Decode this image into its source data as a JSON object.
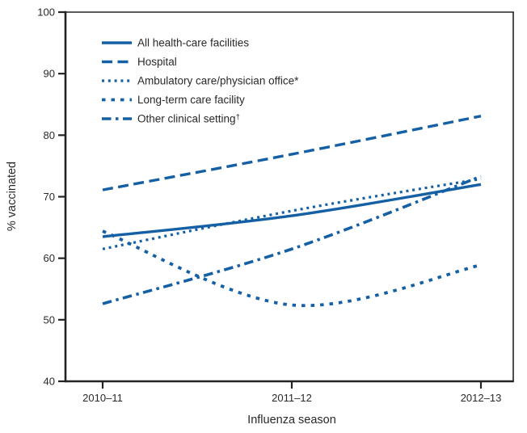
{
  "chart_data": {
    "type": "line",
    "title": "",
    "xlabel": "Influenza season",
    "ylabel": "% vaccinated",
    "x_categories": [
      "2010–11",
      "2011–12",
      "2012–13"
    ],
    "yticks": [
      40,
      50,
      60,
      70,
      80,
      90,
      100
    ],
    "ylim": [
      40,
      100
    ],
    "grid": false,
    "legend_position": "top-left-inside",
    "colors": {
      "line_blue": "#1560a5",
      "axis": "#262223",
      "text": "#2b2829"
    },
    "series": [
      {
        "name": "All health-care facilities",
        "style": "solid",
        "values": [
          63.5,
          66.9,
          72.0
        ]
      },
      {
        "name": "Hospital",
        "style": "long-dash",
        "values": [
          71.1,
          76.9,
          83.1
        ]
      },
      {
        "name": "Ambulatory care/physician office*",
        "style": "dotted",
        "values": [
          61.5,
          67.7,
          72.9
        ]
      },
      {
        "name": "Long-term care facility",
        "style": "medium-dash",
        "values": [
          64.4,
          52.4,
          58.9
        ]
      },
      {
        "name": "Other clinical setting†",
        "style": "dash-dot",
        "values": [
          52.6,
          61.5,
          73.3
        ]
      }
    ]
  }
}
